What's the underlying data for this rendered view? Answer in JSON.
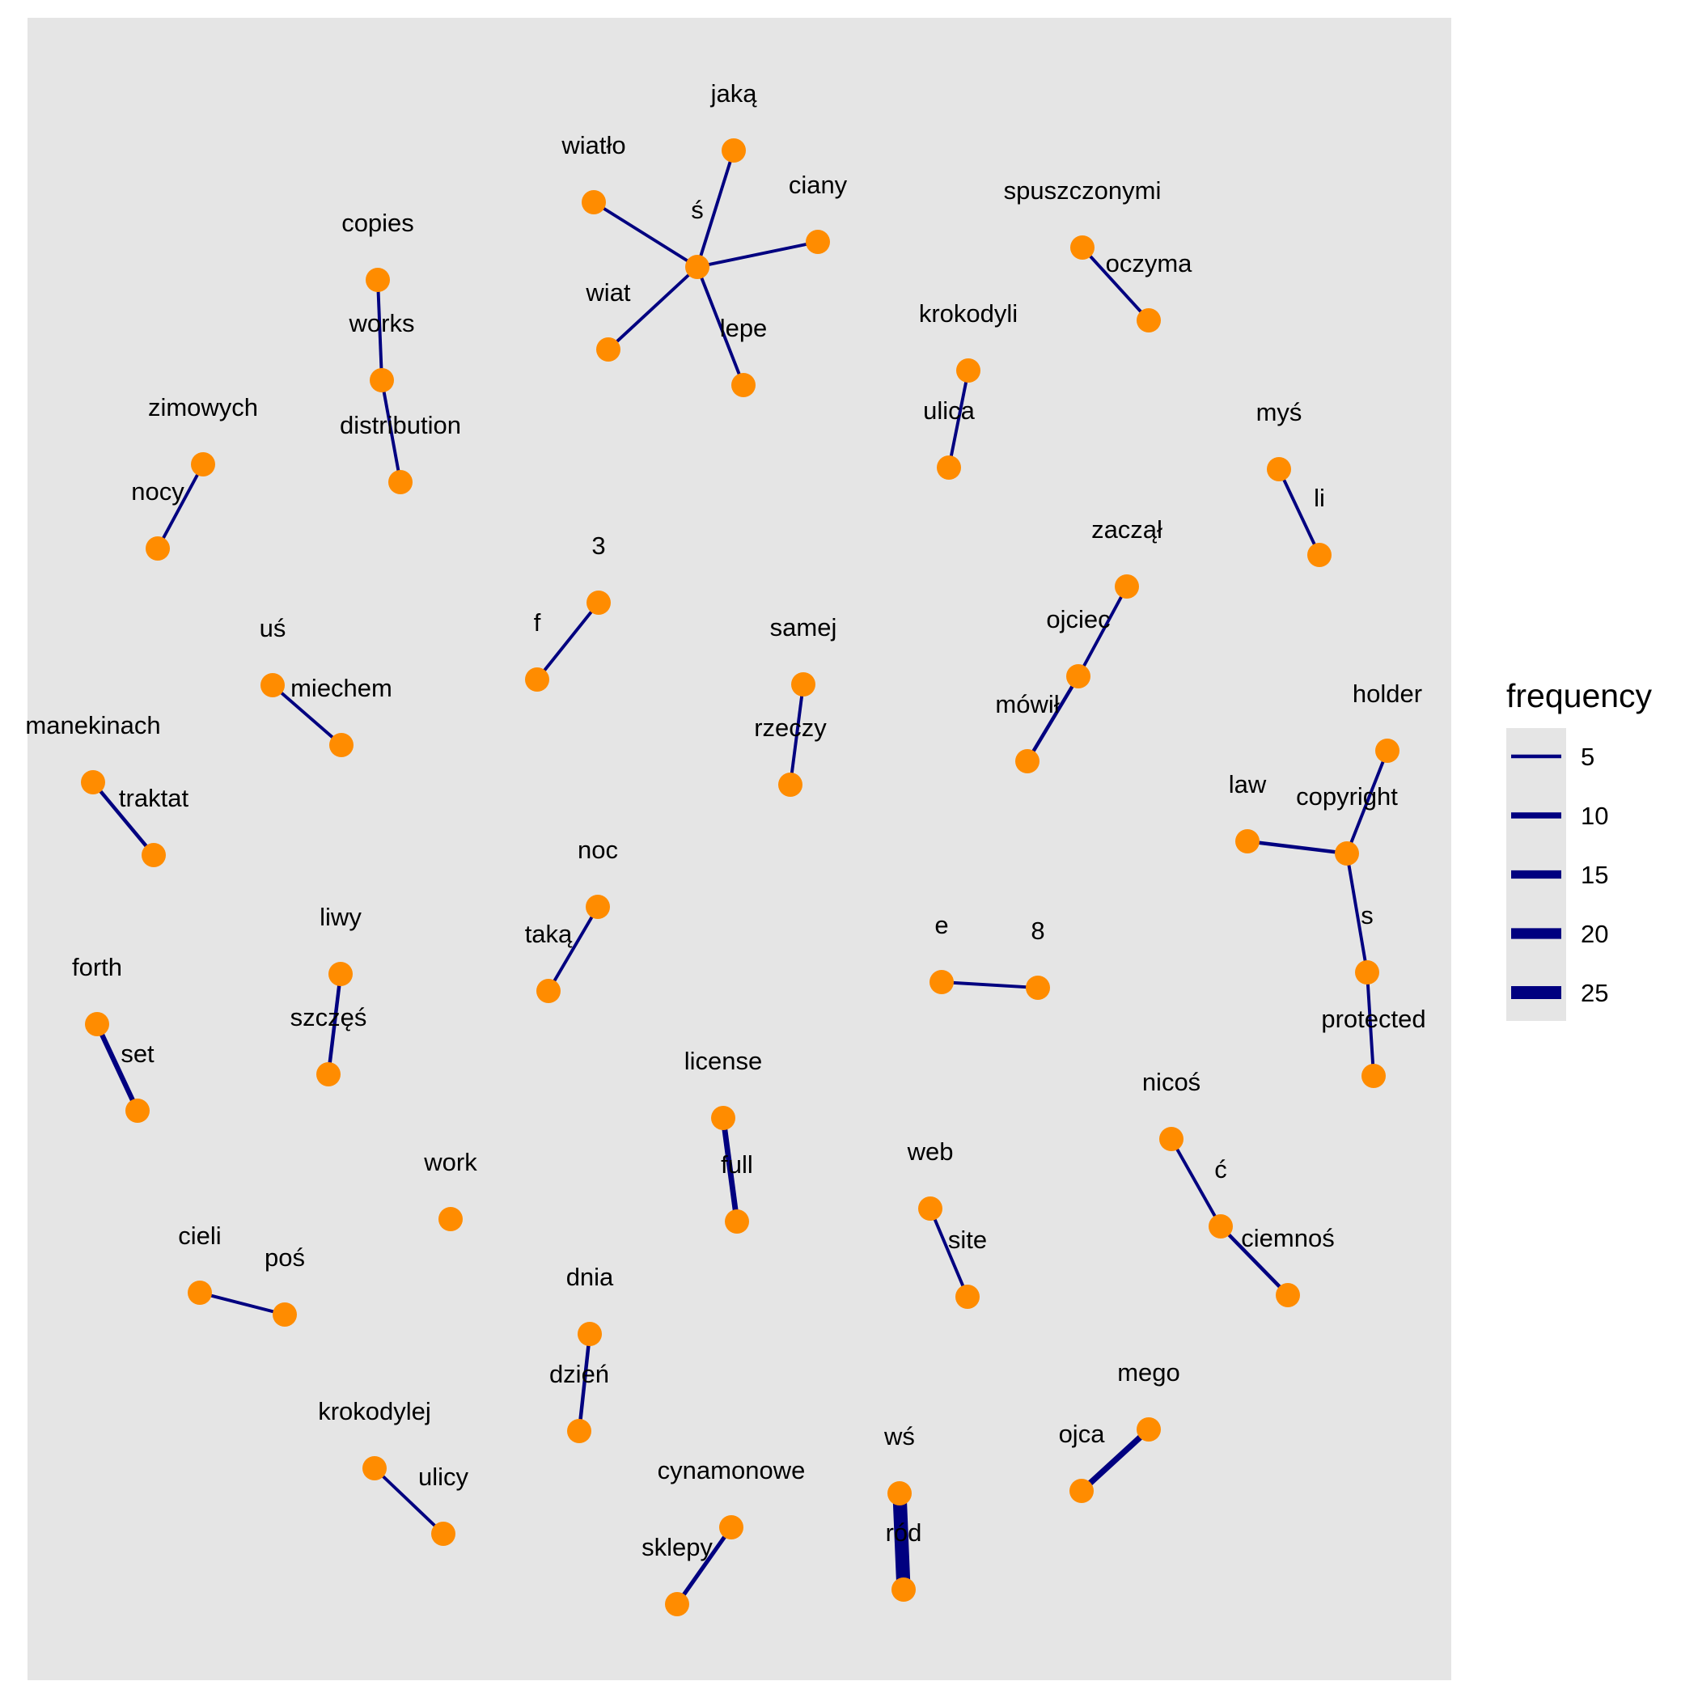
{
  "chart_data": {
    "type": "network",
    "node_color": "#FF8C00",
    "edge_color": "#000080",
    "panel_background": "#E5E5E5",
    "legend": {
      "title": "frequency",
      "placement": "right",
      "keys": [
        {
          "label": "5",
          "value": 5
        },
        {
          "label": "10",
          "value": 10
        },
        {
          "label": "15",
          "value": 15
        },
        {
          "label": "20",
          "value": 20
        },
        {
          "label": "25",
          "value": 25
        }
      ]
    },
    "nodes": [
      {
        "id": "jaka",
        "label": "jaką"
      },
      {
        "id": "wiatlo",
        "label": "wiatło"
      },
      {
        "id": "ciany",
        "label": "ciany"
      },
      {
        "id": "s_center",
        "label": "ś"
      },
      {
        "id": "wiat",
        "label": "wiat"
      },
      {
        "id": "lepe",
        "label": "lepe"
      },
      {
        "id": "copies",
        "label": "copies"
      },
      {
        "id": "works",
        "label": "works"
      },
      {
        "id": "distribution",
        "label": "distribution"
      },
      {
        "id": "spuszczonymi",
        "label": "spuszczonymi"
      },
      {
        "id": "oczyma",
        "label": "oczyma"
      },
      {
        "id": "krokodyli",
        "label": "krokodyli"
      },
      {
        "id": "ulica",
        "label": "ulica"
      },
      {
        "id": "zimowych",
        "label": "zimowych"
      },
      {
        "id": "nocy",
        "label": "nocy"
      },
      {
        "id": "mys",
        "label": "myś"
      },
      {
        "id": "li",
        "label": "li"
      },
      {
        "id": "n3",
        "label": "3"
      },
      {
        "id": "f",
        "label": "f"
      },
      {
        "id": "zaczal",
        "label": "zaczął"
      },
      {
        "id": "ojciec",
        "label": "ojciec"
      },
      {
        "id": "mowil",
        "label": "mówił"
      },
      {
        "id": "us",
        "label": "uś"
      },
      {
        "id": "miechem",
        "label": "miechem"
      },
      {
        "id": "samej",
        "label": "samej"
      },
      {
        "id": "rzeczy",
        "label": "rzeczy"
      },
      {
        "id": "manekinach",
        "label": "manekinach"
      },
      {
        "id": "traktat",
        "label": "traktat"
      },
      {
        "id": "holder",
        "label": "holder"
      },
      {
        "id": "law",
        "label": "law"
      },
      {
        "id": "copyright",
        "label": "copyright"
      },
      {
        "id": "s",
        "label": "s"
      },
      {
        "id": "protected",
        "label": "protected"
      },
      {
        "id": "noc",
        "label": "noc"
      },
      {
        "id": "taka",
        "label": "taką"
      },
      {
        "id": "liwy",
        "label": "liwy"
      },
      {
        "id": "szczes",
        "label": "szczęś"
      },
      {
        "id": "forth",
        "label": "forth"
      },
      {
        "id": "set",
        "label": "set"
      },
      {
        "id": "e",
        "label": "e"
      },
      {
        "id": "n8",
        "label": "8"
      },
      {
        "id": "license",
        "label": "license"
      },
      {
        "id": "full",
        "label": "full"
      },
      {
        "id": "nicos",
        "label": "nicoś"
      },
      {
        "id": "c_acute",
        "label": "ć"
      },
      {
        "id": "ciemnos",
        "label": "ciemnoś"
      },
      {
        "id": "work",
        "label": "work"
      },
      {
        "id": "web",
        "label": "web"
      },
      {
        "id": "site",
        "label": "site"
      },
      {
        "id": "cieli",
        "label": "cieli"
      },
      {
        "id": "pos",
        "label": "poś"
      },
      {
        "id": "dnia",
        "label": "dnia"
      },
      {
        "id": "dzien",
        "label": "dzień"
      },
      {
        "id": "mego",
        "label": "mego"
      },
      {
        "id": "ojca",
        "label": "ojca"
      },
      {
        "id": "krokodylej",
        "label": "krokodylej"
      },
      {
        "id": "ulicy",
        "label": "ulicy"
      },
      {
        "id": "ws",
        "label": "wś"
      },
      {
        "id": "rod",
        "label": "ród"
      },
      {
        "id": "cynamonowe",
        "label": "cynamonowe"
      },
      {
        "id": "sklepy",
        "label": "sklepy"
      }
    ],
    "edges": [
      {
        "from": "s_center",
        "to": "jaka",
        "frequency": 4
      },
      {
        "from": "s_center",
        "to": "wiatlo",
        "frequency": 4
      },
      {
        "from": "s_center",
        "to": "ciany",
        "frequency": 4
      },
      {
        "from": "s_center",
        "to": "wiat",
        "frequency": 4
      },
      {
        "from": "s_center",
        "to": "lepe",
        "frequency": 4
      },
      {
        "from": "copies",
        "to": "works",
        "frequency": 4
      },
      {
        "from": "works",
        "to": "distribution",
        "frequency": 4
      },
      {
        "from": "spuszczonymi",
        "to": "oczyma",
        "frequency": 4
      },
      {
        "from": "krokodyli",
        "to": "ulica",
        "frequency": 4
      },
      {
        "from": "zimowych",
        "to": "nocy",
        "frequency": 4
      },
      {
        "from": "mys",
        "to": "li",
        "frequency": 4
      },
      {
        "from": "n3",
        "to": "f",
        "frequency": 4
      },
      {
        "from": "zaczal",
        "to": "ojciec",
        "frequency": 4
      },
      {
        "from": "ojciec",
        "to": "mowil",
        "frequency": 5
      },
      {
        "from": "us",
        "to": "miechem",
        "frequency": 4
      },
      {
        "from": "samej",
        "to": "rzeczy",
        "frequency": 4
      },
      {
        "from": "manekinach",
        "to": "traktat",
        "frequency": 5
      },
      {
        "from": "holder",
        "to": "copyright",
        "frequency": 4
      },
      {
        "from": "law",
        "to": "copyright",
        "frequency": 5
      },
      {
        "from": "copyright",
        "to": "s",
        "frequency": 4
      },
      {
        "from": "s",
        "to": "protected",
        "frequency": 4
      },
      {
        "from": "noc",
        "to": "taka",
        "frequency": 4
      },
      {
        "from": "liwy",
        "to": "szczes",
        "frequency": 5
      },
      {
        "from": "forth",
        "to": "set",
        "frequency": 8
      },
      {
        "from": "e",
        "to": "n8",
        "frequency": 4
      },
      {
        "from": "license",
        "to": "full",
        "frequency": 9
      },
      {
        "from": "nicos",
        "to": "c_acute",
        "frequency": 4
      },
      {
        "from": "c_acute",
        "to": "ciemnos",
        "frequency": 5
      },
      {
        "from": "web",
        "to": "site",
        "frequency": 4
      },
      {
        "from": "cieli",
        "to": "pos",
        "frequency": 4
      },
      {
        "from": "dnia",
        "to": "dzien",
        "frequency": 5
      },
      {
        "from": "mego",
        "to": "ojca",
        "frequency": 10
      },
      {
        "from": "krokodylej",
        "to": "ulicy",
        "frequency": 4
      },
      {
        "from": "ws",
        "to": "rod",
        "frequency": 27
      },
      {
        "from": "cynamonowe",
        "to": "sklepy",
        "frequency": 6
      }
    ]
  }
}
